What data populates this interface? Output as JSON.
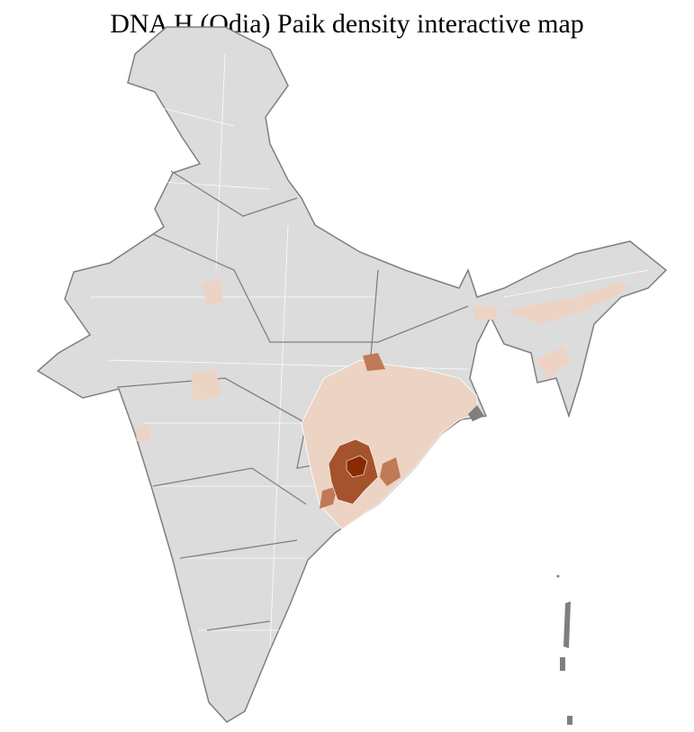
{
  "title": "DNA H (Odia) Paik density interactive map",
  "colors": {
    "land": "#dcdcdc",
    "district_border": "#ffffff",
    "state_border": "#7f7f7f",
    "low_density": "#edd3c4",
    "medium_density": "#c07a55",
    "high_density": "#a4532c",
    "highest_density": "#8a2a00"
  }
}
